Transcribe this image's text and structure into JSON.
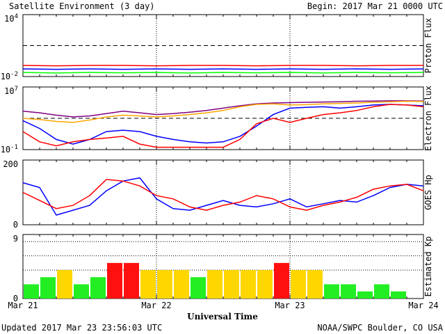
{
  "header": {
    "title": "Satellite Environment (3 day)",
    "begin": "Begin:  2017 Mar 21 0000 UTC"
  },
  "footer": {
    "updated": "Updated 2017 Mar 23 23:56:03 UTC",
    "credit": "NOAA/SWPC Boulder, CO USA"
  },
  "x_axis": {
    "label": "Universal Time",
    "ticks": [
      "Mar 21",
      "Mar 22",
      "Mar 23",
      "Mar 24"
    ]
  },
  "colors": {
    "red": "#ff0000",
    "blue": "#0000ff",
    "green": "#00ff00",
    "purple": "#800080",
    "orange": "#ffa500",
    "kp_green": "#22ee22",
    "kp_yellow": "#ffd700",
    "kp_red": "#ff1010"
  },
  "chart_data": [
    {
      "type": "line",
      "title": "Proton Flux",
      "ylabel": "Proton Flux",
      "y_scale": "log",
      "ylim": [
        0.01,
        10000
      ],
      "y_tick_labels": [
        {
          "base": "10",
          "exp": "4"
        },
        {
          "base": "10",
          "exp": "-2"
        }
      ],
      "threshold": 10,
      "x": [
        0,
        6,
        12,
        18,
        24,
        30,
        36,
        42,
        48,
        54,
        60,
        66,
        72
      ],
      "series": [
        {
          "color": "red",
          "values": [
            0.12,
            0.11,
            0.12,
            0.12,
            0.11,
            0.12,
            0.12,
            0.11,
            0.12,
            0.12,
            0.11,
            0.12,
            0.12
          ]
        },
        {
          "color": "blue",
          "values": [
            0.055,
            0.05,
            0.055,
            0.05,
            0.055,
            0.05,
            0.055,
            0.05,
            0.055,
            0.05,
            0.055,
            0.05,
            0.055
          ]
        },
        {
          "color": "green",
          "values": [
            0.025,
            0.022,
            0.025,
            0.023,
            0.025,
            0.022,
            0.025,
            0.023,
            0.025,
            0.022,
            0.025,
            0.023,
            0.025
          ]
        }
      ]
    },
    {
      "type": "line",
      "title": "Electron Flux",
      "ylabel": "Electron Flux",
      "y_scale": "log",
      "ylim": [
        0.1,
        10000000
      ],
      "y_tick_labels": [
        {
          "base": "10",
          "exp": "7"
        },
        {
          "base": "10",
          "exp": "-1"
        }
      ],
      "threshold": 1000,
      "x": [
        0,
        3,
        6,
        9,
        12,
        15,
        18,
        21,
        24,
        27,
        30,
        33,
        36,
        39,
        42,
        45,
        48,
        51,
        54,
        57,
        60,
        63,
        66,
        69,
        72
      ],
      "series": [
        {
          "color": "purple",
          "values": [
            8000,
            5000,
            2500,
            1500,
            2000,
            4000,
            8000,
            5000,
            3000,
            4000,
            6000,
            10000,
            20000,
            40000,
            70000,
            90000,
            100000,
            110000,
            120000,
            130000,
            150000,
            160000,
            170000,
            170000,
            160000
          ]
        },
        {
          "color": "orange",
          "values": [
            1000,
            700,
            400,
            300,
            600,
            1500,
            2500,
            2000,
            1500,
            2000,
            3000,
            5000,
            10000,
            30000,
            60000,
            70000,
            50000,
            55000,
            70000,
            80000,
            90000,
            110000,
            130000,
            150000,
            140000
          ]
        },
        {
          "color": "blue",
          "values": [
            500,
            50,
            2,
            0.5,
            2,
            20,
            30,
            20,
            5,
            2,
            1,
            0.7,
            1,
            5,
            100,
            3000,
            20000,
            25000,
            30000,
            20000,
            30000,
            50000,
            60000,
            50000,
            40000
          ]
        },
        {
          "color": "red",
          "values": [
            20,
            1,
            0.3,
            1,
            2,
            3,
            5,
            0.5,
            0.2,
            0.2,
            0.2,
            0.2,
            0.2,
            2,
            200,
            1000,
            300,
            1000,
            3000,
            5000,
            10000,
            30000,
            60000,
            50000,
            30000
          ]
        }
      ]
    },
    {
      "type": "line",
      "title": "GOES Hp",
      "ylabel": "GOES Hp",
      "ylim": [
        0,
        200
      ],
      "y_tick_labels": [
        "200",
        "0"
      ],
      "x": [
        0,
        3,
        6,
        9,
        12,
        15,
        18,
        21,
        24,
        27,
        30,
        33,
        36,
        39,
        42,
        45,
        48,
        51,
        54,
        57,
        60,
        63,
        66,
        69,
        72
      ],
      "series": [
        {
          "color": "blue",
          "values": [
            130,
            115,
            30,
            45,
            60,
            105,
            135,
            145,
            80,
            50,
            45,
            60,
            75,
            60,
            55,
            65,
            80,
            55,
            65,
            75,
            70,
            90,
            115,
            125,
            120
          ]
        },
        {
          "color": "red",
          "values": [
            100,
            75,
            50,
            60,
            90,
            140,
            135,
            120,
            90,
            80,
            55,
            45,
            60,
            70,
            90,
            80,
            55,
            45,
            60,
            70,
            85,
            110,
            120,
            125,
            105
          ]
        }
      ]
    },
    {
      "type": "bar",
      "title": "Estimated Kp",
      "ylabel": "Estimated Kp",
      "ylim": [
        0,
        9
      ],
      "y_tick_labels": [
        "9",
        "0"
      ],
      "x_start_hours": [
        0,
        3,
        6,
        9,
        12,
        15,
        18,
        21,
        24,
        27,
        30,
        33,
        36,
        39,
        42,
        45,
        48,
        51,
        54,
        57,
        60,
        63,
        66,
        69
      ],
      "values": [
        2,
        3,
        4,
        2,
        3,
        5,
        5,
        4,
        4,
        4,
        3,
        4,
        4,
        4,
        4,
        5,
        4,
        4,
        2,
        2,
        1,
        2,
        1,
        0
      ],
      "colors": [
        "kp_green",
        "kp_green",
        "kp_yellow",
        "kp_green",
        "kp_green",
        "kp_red",
        "kp_red",
        "kp_yellow",
        "kp_yellow",
        "kp_yellow",
        "kp_green",
        "kp_yellow",
        "kp_yellow",
        "kp_yellow",
        "kp_yellow",
        "kp_red",
        "kp_yellow",
        "kp_yellow",
        "kp_green",
        "kp_green",
        "kp_green",
        "kp_green",
        "kp_green",
        "kp_green"
      ],
      "dotted_levels": [
        4,
        6,
        8
      ]
    }
  ]
}
